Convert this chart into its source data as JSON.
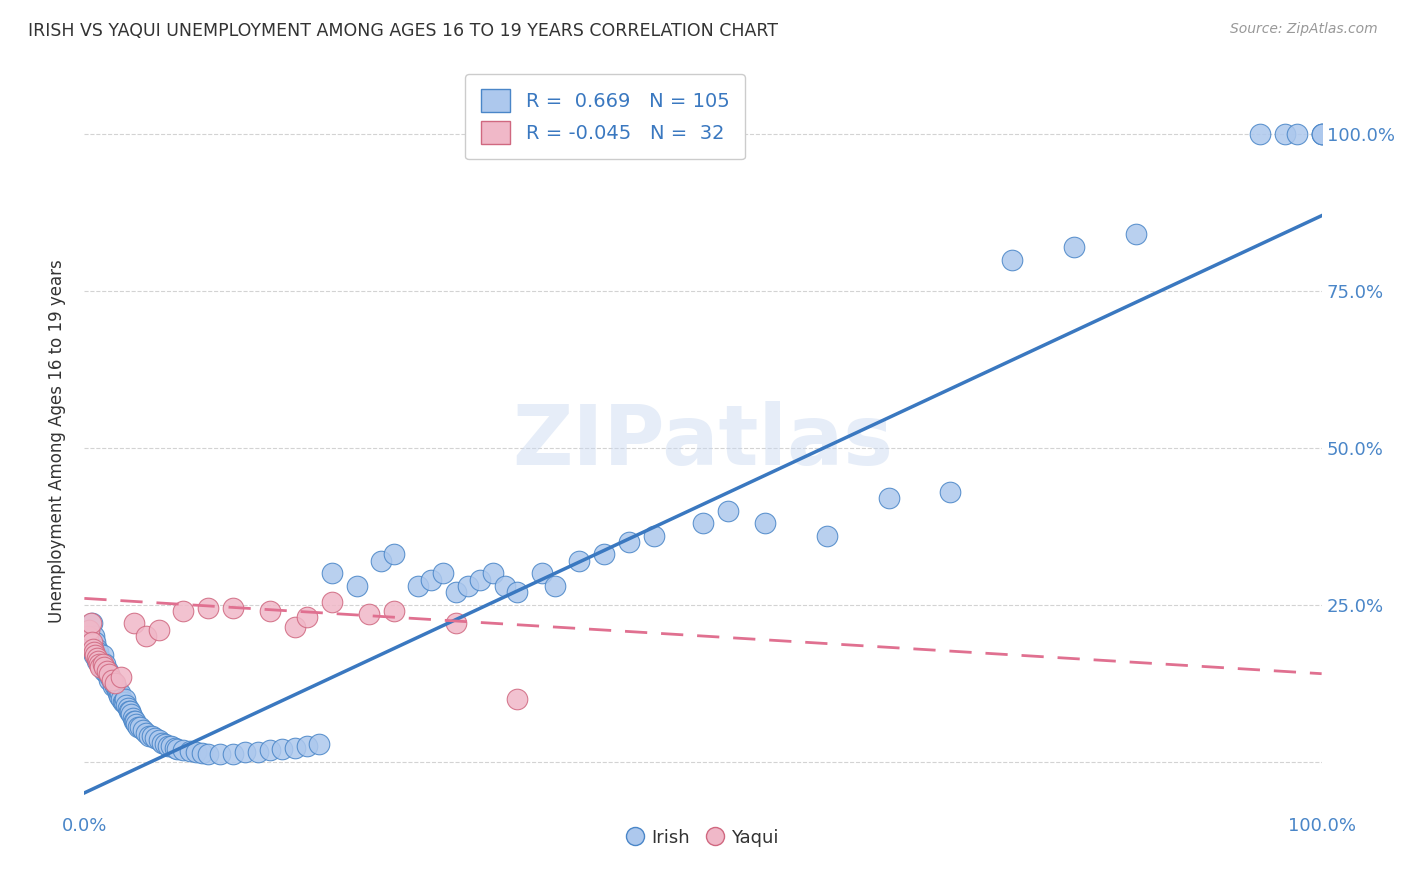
{
  "title": "IRISH VS YAQUI UNEMPLOYMENT AMONG AGES 16 TO 19 YEARS CORRELATION CHART",
  "source": "Source: ZipAtlas.com",
  "ylabel": "Unemployment Among Ages 16 to 19 years",
  "watermark_text": "ZIPatlas",
  "legend_irish_r": "0.669",
  "legend_irish_n": "105",
  "legend_yaqui_r": "-0.045",
  "legend_yaqui_n": "32",
  "irish_fill_color": "#adc8ed",
  "irish_edge_color": "#4a86c8",
  "yaqui_fill_color": "#f0b8c8",
  "yaqui_edge_color": "#d06880",
  "irish_line_color": "#3a78c0",
  "yaqui_line_color": "#e07090",
  "background_color": "#ffffff",
  "grid_color": "#c8c8c8",
  "title_color": "#333333",
  "axis_tick_color": "#4a86c8",
  "irish_line_slope": 0.92,
  "irish_line_intercept": -0.05,
  "yaqui_line_slope": -0.12,
  "yaqui_line_intercept": 0.26,
  "xlim": [
    0,
    1.0
  ],
  "ylim": [
    -0.08,
    1.1
  ],
  "ytick_positions": [
    0.0,
    0.25,
    0.5,
    0.75,
    1.0
  ],
  "ytick_labels_right": [
    "",
    "25.0%",
    "50.0%",
    "75.0%",
    "100.0%"
  ],
  "xtick_positions": [
    0.0,
    0.1,
    0.2,
    0.3,
    0.4,
    0.5,
    0.6,
    0.7,
    0.8,
    0.9,
    1.0
  ],
  "xtick_labels": [
    "0.0%",
    "",
    "",
    "",
    "",
    "",
    "",
    "",
    "",
    "",
    "100.0%"
  ],
  "irish_x": [
    0.003,
    0.004,
    0.005,
    0.006,
    0.007,
    0.008,
    0.008,
    0.009,
    0.01,
    0.01,
    0.011,
    0.012,
    0.013,
    0.014,
    0.015,
    0.015,
    0.016,
    0.017,
    0.018,
    0.019,
    0.02,
    0.021,
    0.022,
    0.023,
    0.024,
    0.025,
    0.026,
    0.027,
    0.028,
    0.029,
    0.03,
    0.031,
    0.032,
    0.033,
    0.034,
    0.035,
    0.036,
    0.037,
    0.038,
    0.039,
    0.04,
    0.041,
    0.042,
    0.043,
    0.045,
    0.047,
    0.05,
    0.052,
    0.055,
    0.057,
    0.06,
    0.063,
    0.065,
    0.068,
    0.07,
    0.073,
    0.075,
    0.08,
    0.085,
    0.09,
    0.095,
    0.1,
    0.11,
    0.12,
    0.13,
    0.14,
    0.15,
    0.16,
    0.17,
    0.18,
    0.19,
    0.2,
    0.22,
    0.24,
    0.25,
    0.27,
    0.28,
    0.29,
    0.3,
    0.31,
    0.32,
    0.33,
    0.34,
    0.35,
    0.37,
    0.38,
    0.4,
    0.42,
    0.44,
    0.46,
    0.5,
    0.52,
    0.55,
    0.6,
    0.65,
    0.7,
    0.75,
    0.8,
    0.85,
    0.95,
    0.97,
    0.98,
    1.0,
    1.0,
    1.0
  ],
  "irish_y": [
    0.2,
    0.21,
    0.19,
    0.22,
    0.18,
    0.17,
    0.2,
    0.19,
    0.16,
    0.18,
    0.175,
    0.165,
    0.155,
    0.16,
    0.15,
    0.17,
    0.145,
    0.155,
    0.14,
    0.145,
    0.13,
    0.135,
    0.13,
    0.12,
    0.125,
    0.12,
    0.115,
    0.11,
    0.105,
    0.11,
    0.1,
    0.095,
    0.095,
    0.1,
    0.09,
    0.085,
    0.08,
    0.08,
    0.075,
    0.07,
    0.065,
    0.065,
    0.06,
    0.055,
    0.055,
    0.05,
    0.045,
    0.04,
    0.04,
    0.038,
    0.035,
    0.03,
    0.028,
    0.025,
    0.025,
    0.022,
    0.02,
    0.018,
    0.016,
    0.015,
    0.013,
    0.012,
    0.012,
    0.012,
    0.015,
    0.015,
    0.018,
    0.02,
    0.022,
    0.025,
    0.028,
    0.3,
    0.28,
    0.32,
    0.33,
    0.28,
    0.29,
    0.3,
    0.27,
    0.28,
    0.29,
    0.3,
    0.28,
    0.27,
    0.3,
    0.28,
    0.32,
    0.33,
    0.35,
    0.36,
    0.38,
    0.4,
    0.38,
    0.36,
    0.42,
    0.43,
    0.8,
    0.82,
    0.84,
    1.0,
    1.0,
    1.0,
    1.0,
    1.0,
    1.0
  ],
  "yaqui_x": [
    0.003,
    0.004,
    0.005,
    0.006,
    0.007,
    0.008,
    0.009,
    0.01,
    0.011,
    0.012,
    0.013,
    0.015,
    0.016,
    0.018,
    0.02,
    0.022,
    0.025,
    0.03,
    0.04,
    0.05,
    0.06,
    0.08,
    0.1,
    0.12,
    0.15,
    0.17,
    0.18,
    0.2,
    0.23,
    0.25,
    0.3,
    0.35
  ],
  "yaqui_y": [
    0.2,
    0.21,
    0.22,
    0.19,
    0.18,
    0.175,
    0.17,
    0.165,
    0.16,
    0.155,
    0.15,
    0.155,
    0.15,
    0.145,
    0.14,
    0.13,
    0.125,
    0.135,
    0.22,
    0.2,
    0.21,
    0.24,
    0.245,
    0.245,
    0.24,
    0.215,
    0.23,
    0.255,
    0.235,
    0.24,
    0.22,
    0.1
  ]
}
